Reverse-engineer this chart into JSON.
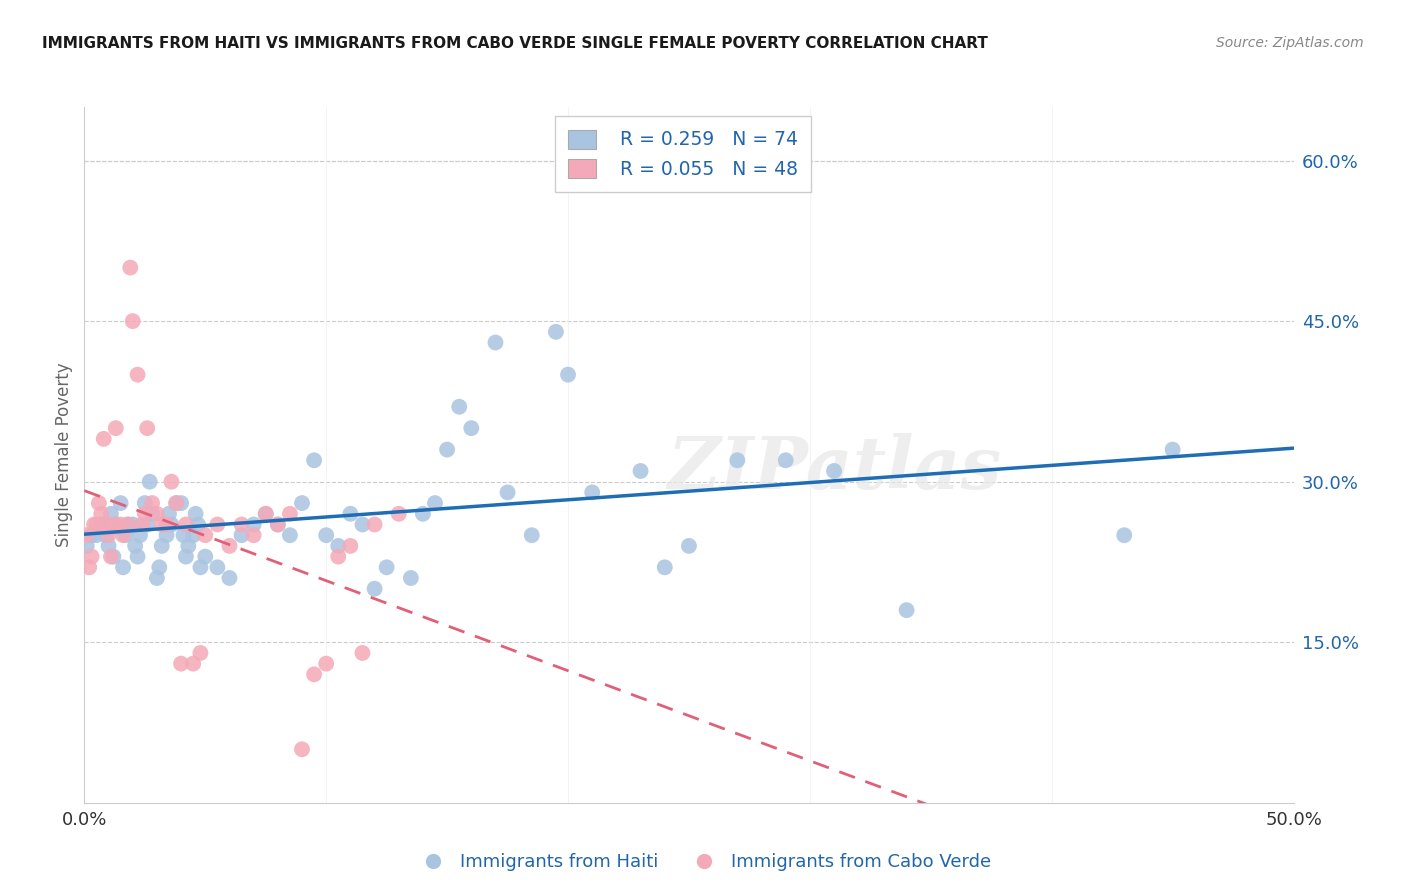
{
  "title": "IMMIGRANTS FROM HAITI VS IMMIGRANTS FROM CABO VERDE SINGLE FEMALE POVERTY CORRELATION CHART",
  "source": "Source: ZipAtlas.com",
  "ylabel": "Single Female Poverty",
  "ytick_vals": [
    0.15,
    0.3,
    0.45,
    0.6
  ],
  "xlim": [
    0.0,
    0.5
  ],
  "ylim": [
    0.0,
    0.65
  ],
  "legend_haiti_R": "R = 0.259",
  "legend_haiti_N": "N = 74",
  "legend_cabo_R": "R = 0.055",
  "legend_cabo_N": "N = 48",
  "haiti_color": "#a8c4e0",
  "cabo_color": "#f4a9b8",
  "haiti_line_color": "#1f6db5",
  "cabo_line_color": "#e0607a",
  "watermark": "ZIPatlas",
  "haiti_x": [
    0.001,
    0.003,
    0.005,
    0.007,
    0.008,
    0.009,
    0.01,
    0.011,
    0.012,
    0.013,
    0.015,
    0.016,
    0.017,
    0.018,
    0.02,
    0.021,
    0.022,
    0.023,
    0.025,
    0.026,
    0.027,
    0.028,
    0.03,
    0.031,
    0.032,
    0.034,
    0.035,
    0.036,
    0.038,
    0.04,
    0.041,
    0.042,
    0.043,
    0.045,
    0.046,
    0.047,
    0.048,
    0.05,
    0.055,
    0.06,
    0.065,
    0.07,
    0.075,
    0.08,
    0.085,
    0.09,
    0.095,
    0.1,
    0.105,
    0.11,
    0.115,
    0.12,
    0.125,
    0.135,
    0.14,
    0.145,
    0.15,
    0.155,
    0.16,
    0.17,
    0.175,
    0.185,
    0.195,
    0.2,
    0.21,
    0.23,
    0.24,
    0.25,
    0.27,
    0.29,
    0.31,
    0.34,
    0.43,
    0.45
  ],
  "haiti_y": [
    0.24,
    0.25,
    0.25,
    0.26,
    0.26,
    0.25,
    0.24,
    0.27,
    0.23,
    0.26,
    0.28,
    0.22,
    0.25,
    0.26,
    0.26,
    0.24,
    0.23,
    0.25,
    0.28,
    0.26,
    0.3,
    0.27,
    0.21,
    0.22,
    0.24,
    0.25,
    0.27,
    0.26,
    0.28,
    0.28,
    0.25,
    0.23,
    0.24,
    0.25,
    0.27,
    0.26,
    0.22,
    0.23,
    0.22,
    0.21,
    0.25,
    0.26,
    0.27,
    0.26,
    0.25,
    0.28,
    0.32,
    0.25,
    0.24,
    0.27,
    0.26,
    0.2,
    0.22,
    0.21,
    0.27,
    0.28,
    0.33,
    0.37,
    0.35,
    0.43,
    0.29,
    0.25,
    0.44,
    0.4,
    0.29,
    0.31,
    0.22,
    0.24,
    0.32,
    0.32,
    0.31,
    0.18,
    0.25,
    0.33
  ],
  "cabo_x": [
    0.001,
    0.002,
    0.003,
    0.004,
    0.005,
    0.006,
    0.007,
    0.008,
    0.009,
    0.01,
    0.011,
    0.012,
    0.013,
    0.015,
    0.016,
    0.018,
    0.019,
    0.02,
    0.022,
    0.024,
    0.025,
    0.026,
    0.028,
    0.03,
    0.032,
    0.034,
    0.036,
    0.038,
    0.04,
    0.042,
    0.045,
    0.048,
    0.05,
    0.055,
    0.06,
    0.065,
    0.07,
    0.075,
    0.08,
    0.085,
    0.09,
    0.095,
    0.1,
    0.105,
    0.11,
    0.115,
    0.12,
    0.13
  ],
  "cabo_y": [
    0.25,
    0.22,
    0.23,
    0.26,
    0.26,
    0.28,
    0.27,
    0.34,
    0.26,
    0.25,
    0.23,
    0.26,
    0.35,
    0.26,
    0.25,
    0.26,
    0.5,
    0.45,
    0.4,
    0.26,
    0.27,
    0.35,
    0.28,
    0.27,
    0.26,
    0.26,
    0.3,
    0.28,
    0.13,
    0.26,
    0.13,
    0.14,
    0.25,
    0.26,
    0.24,
    0.26,
    0.25,
    0.27,
    0.26,
    0.27,
    0.05,
    0.12,
    0.13,
    0.23,
    0.24,
    0.14,
    0.26,
    0.27
  ]
}
